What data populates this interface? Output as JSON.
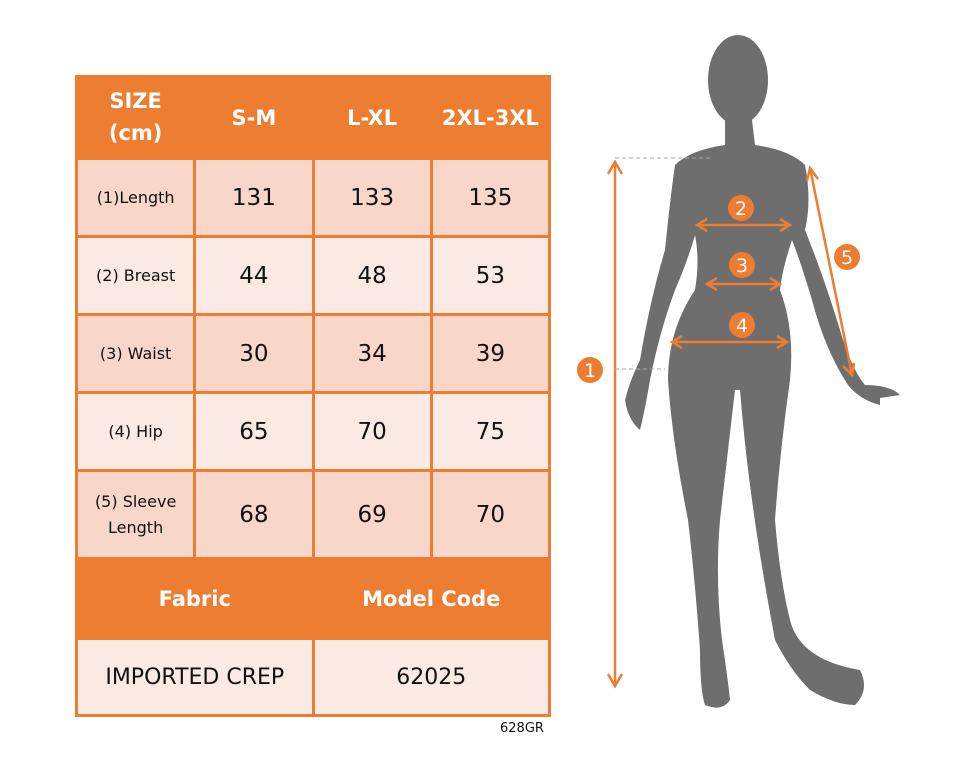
{
  "table": {
    "header": [
      "SIZE\n(cm)",
      "S-M",
      "L-XL",
      "2XL-3XL"
    ],
    "header_line1": "SIZE",
    "header_line2": "(cm)",
    "rows": [
      {
        "label": "(1)Length",
        "values": [
          "131",
          "133",
          "135"
        ]
      },
      {
        "label": "(2) Breast",
        "values": [
          "44",
          "48",
          "53"
        ]
      },
      {
        "label": "(3) Waist",
        "values": [
          "30",
          "34",
          "39"
        ]
      },
      {
        "label": "(4) Hip",
        "values": [
          "65",
          "70",
          "75"
        ]
      },
      {
        "label_line1": "(5) Sleeve",
        "label_line2": "Length",
        "values": [
          "68",
          "69",
          "70"
        ]
      }
    ],
    "fabric_label": "Fabric",
    "model_code_label": "Model Code",
    "fabric_value": "IMPORTED CREP",
    "model_code_value": "62025"
  },
  "product_code": "628GR",
  "figure": {
    "markers": [
      "1",
      "2",
      "3",
      "4",
      "5"
    ]
  },
  "colors": {
    "accent": "#ED7D31",
    "row_dark": "#F8D6C9",
    "row_light": "#FBEAE4",
    "silhouette": "#6E6E6E"
  }
}
